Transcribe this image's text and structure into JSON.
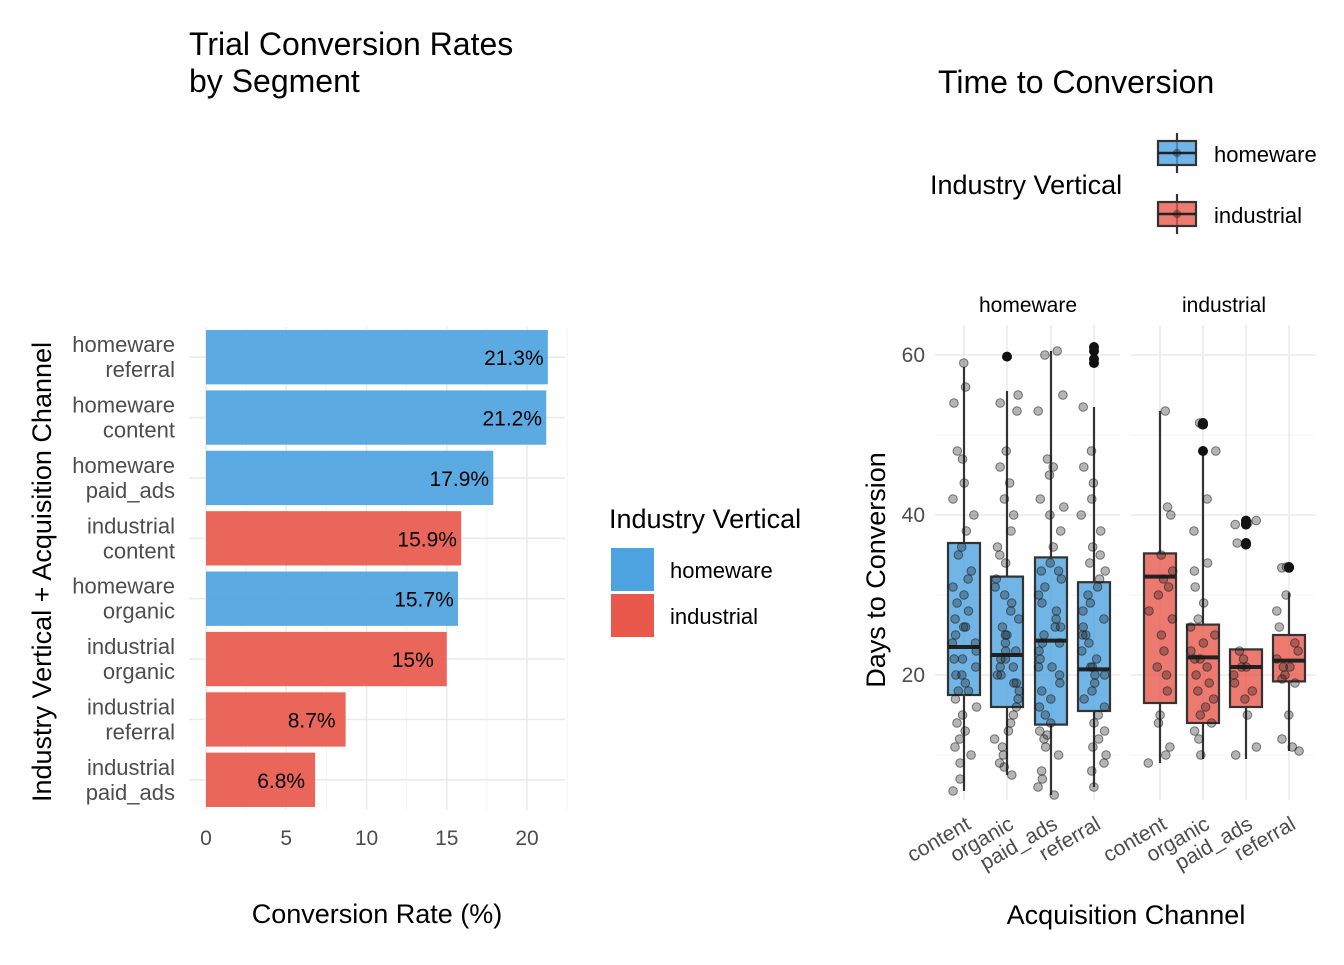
{
  "colors": {
    "homeware": "#4DA3E0",
    "industrial": "#E8594C",
    "grid_major": "#EBEBEB",
    "grid_minor": "#F4F4F4",
    "tick_text": "#4D4D4D",
    "box_line": "#333333",
    "point": "#1A1A1A"
  },
  "chart_data": [
    {
      "type": "bar",
      "orientation": "horizontal",
      "title_lines": [
        "Trial Conversion Rates",
        "by Segment"
      ],
      "xlabel": "Conversion Rate (%)",
      "ylabel": "Industry Vertical + Acquisition Channel",
      "xlim": [
        0,
        22.5
      ],
      "x_ticks": [
        0,
        5,
        10,
        15,
        20
      ],
      "grid": true,
      "legend": {
        "title": "Industry Vertical",
        "placement": "right",
        "entries": [
          "homeware",
          "industrial"
        ]
      },
      "bars": [
        {
          "label_lines": [
            "homeware",
            "referral"
          ],
          "group": "homeware",
          "value": 21.3,
          "value_label": "21.3%"
        },
        {
          "label_lines": [
            "homeware",
            "content"
          ],
          "group": "homeware",
          "value": 21.2,
          "value_label": "21.2%"
        },
        {
          "label_lines": [
            "homeware",
            "paid_ads"
          ],
          "group": "homeware",
          "value": 17.9,
          "value_label": "17.9%"
        },
        {
          "label_lines": [
            "industrial",
            "content"
          ],
          "group": "industrial",
          "value": 15.9,
          "value_label": "15.9%"
        },
        {
          "label_lines": [
            "homeware",
            "organic"
          ],
          "group": "homeware",
          "value": 15.7,
          "value_label": "15.7%"
        },
        {
          "label_lines": [
            "industrial",
            "organic"
          ],
          "group": "industrial",
          "value": 15.0,
          "value_label": "15%"
        },
        {
          "label_lines": [
            "industrial",
            "referral"
          ],
          "group": "industrial",
          "value": 8.7,
          "value_label": "8.7%"
        },
        {
          "label_lines": [
            "industrial",
            "paid_ads"
          ],
          "group": "industrial",
          "value": 6.8,
          "value_label": "6.8%"
        }
      ]
    },
    {
      "type": "box",
      "title": "Time to Conversion",
      "xlabel": "Acquisition Channel",
      "ylabel": "Days to Conversion",
      "ylim": [
        3,
        62
      ],
      "y_ticks": [
        20,
        40,
        60
      ],
      "grid": true,
      "legend": {
        "title": "Industry Vertical",
        "placement": "top",
        "entries": [
          "homeware",
          "industrial"
        ]
      },
      "facets": [
        {
          "label": "homeware",
          "categories": [
            "content",
            "organic",
            "paid_ads",
            "referral"
          ],
          "boxes": [
            {
              "min": 5.5,
              "q1": 17.5,
              "median": 23.5,
              "q3": 36.5,
              "max": 58.5,
              "outliers": [],
              "points": [
                59,
                56,
                54,
                48,
                47,
                44,
                42,
                40,
                38,
                36,
                35,
                33,
                32,
                31,
                30,
                29,
                28,
                27,
                26,
                26,
                25,
                24,
                24,
                23,
                22,
                22,
                21,
                20,
                20,
                19,
                18,
                18,
                17,
                16,
                15,
                14,
                13,
                12,
                11,
                10,
                9,
                7,
                5.5
              ]
            },
            {
              "min": 7.5,
              "q1": 16,
              "median": 22.5,
              "q3": 32.3,
              "max": 55.5,
              "outliers": [
                59.8
              ],
              "points": [
                55,
                54,
                53,
                48,
                46,
                44,
                42,
                40,
                38,
                36,
                35,
                34,
                32,
                31,
                30,
                29,
                28,
                27,
                26,
                25,
                25,
                24,
                23,
                23,
                22,
                22,
                21,
                21,
                20,
                20,
                19,
                19,
                18,
                17,
                16,
                15,
                14,
                13,
                12,
                11,
                10,
                9,
                8.5,
                7.5
              ]
            },
            {
              "min": 5,
              "q1": 13.8,
              "median": 24.3,
              "q3": 34.7,
              "max": 60.5,
              "outliers": [],
              "points": [
                60.5,
                60,
                55,
                53,
                47,
                46,
                45,
                42,
                41,
                40,
                38,
                36,
                34,
                33,
                33,
                32,
                31,
                30,
                29,
                28,
                27,
                26,
                26,
                25,
                24,
                24,
                23,
                22,
                21,
                21,
                20,
                19,
                18,
                17,
                16,
                15,
                14,
                13,
                12.5,
                12,
                11,
                10,
                8,
                7,
                6,
                5
              ]
            },
            {
              "min": 6,
              "q1": 15.5,
              "median": 20.7,
              "q3": 31.6,
              "max": 53.5,
              "outliers": [
                61,
                60.5,
                59.5,
                59
              ],
              "points": [
                53.5,
                48,
                46,
                44,
                42,
                40,
                38,
                36,
                35,
                34,
                33,
                32,
                31,
                30,
                29,
                28,
                27,
                26,
                25,
                25,
                24,
                23,
                22,
                21,
                21,
                20,
                20,
                19,
                18,
                17,
                16,
                15,
                14,
                13,
                12,
                11,
                10,
                9,
                8,
                6
              ]
            }
          ]
        },
        {
          "label": "industrial",
          "categories": [
            "content",
            "organic",
            "paid_ads",
            "referral"
          ],
          "boxes": [
            {
              "min": 9,
              "q1": 16.5,
              "median": 32.3,
              "q3": 35.2,
              "max": 53,
              "outliers": [],
              "points": [
                53,
                41,
                40,
                35,
                33,
                32,
                31,
                30,
                28,
                27,
                25,
                23,
                21,
                20,
                18,
                15,
                14,
                11,
                10,
                9
              ]
            },
            {
              "min": 9.5,
              "q1": 14,
              "median": 22.2,
              "q3": 26.3,
              "max": 47.5,
              "outliers": [
                51.5,
                51.3,
                48
              ],
              "points": [
                51.5,
                51.3,
                48,
                42,
                38,
                34,
                33,
                31,
                29,
                27,
                26,
                25,
                24,
                23,
                22,
                22,
                21,
                20,
                19,
                18,
                17,
                16,
                15,
                14,
                13,
                12,
                10
              ]
            },
            {
              "min": 9.5,
              "q1": 16,
              "median": 21,
              "q3": 23.2,
              "max": 23.2,
              "outliers": [
                39.3,
                39,
                38.8,
                36.5,
                36.3
              ],
              "points": [
                39.3,
                39,
                38.8,
                36.5,
                36.3,
                23,
                22,
                21,
                21,
                20,
                19,
                18,
                17,
                15,
                11,
                10
              ]
            },
            {
              "min": 10.5,
              "q1": 19.2,
              "median": 21.8,
              "q3": 25,
              "max": 30.3,
              "outliers": [
                33.5,
                33.4
              ],
              "points": [
                33.5,
                33.4,
                30,
                28,
                26,
                24,
                23,
                22,
                21,
                21,
                20,
                19.5,
                19,
                15,
                12,
                11,
                10.5
              ]
            }
          ]
        }
      ]
    }
  ]
}
